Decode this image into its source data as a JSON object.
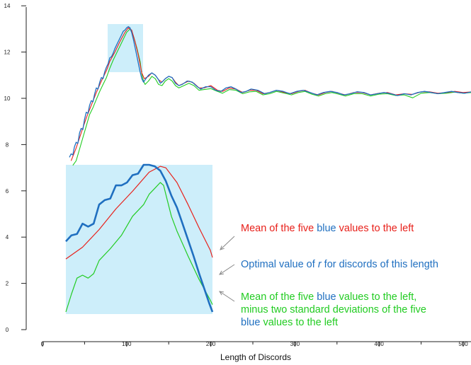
{
  "chart_data": {
    "type": "line",
    "xlabel": "Length of Discords",
    "ylabel": "",
    "xlim": [
      0,
      510
    ],
    "ylim": [
      0,
      14
    ],
    "x_ticks": [
      "0",
      "100",
      "200",
      "300",
      "400",
      "500"
    ],
    "y_ticks": [
      "0",
      "2",
      "4",
      "6",
      "8",
      "10",
      "12",
      "14"
    ],
    "grid": false,
    "colors": {
      "blue": "#1f6fc0",
      "red": "#e8201a",
      "green": "#22cc22",
      "highlight": "#cdeefa"
    },
    "series": [
      {
        "key": "blue",
        "values": [
          [
            32,
            7.45
          ],
          [
            34,
            7.6
          ],
          [
            36,
            7.55
          ],
          [
            38,
            7.9
          ],
          [
            40,
            8.1
          ],
          [
            42,
            8.05
          ],
          [
            44,
            8.5
          ],
          [
            46,
            8.7
          ],
          [
            48,
            8.65
          ],
          [
            50,
            9.1
          ],
          [
            52,
            9.4
          ],
          [
            54,
            9.35
          ],
          [
            56,
            9.7
          ],
          [
            58,
            9.9
          ],
          [
            60,
            9.85
          ],
          [
            62,
            10.2
          ],
          [
            64,
            10.45
          ],
          [
            66,
            10.4
          ],
          [
            68,
            10.7
          ],
          [
            70,
            10.9
          ],
          [
            72,
            10.85
          ],
          [
            74,
            11.15
          ],
          [
            76,
            11.35
          ],
          [
            78,
            11.5
          ],
          [
            80,
            11.75
          ],
          [
            82,
            11.8
          ],
          [
            84,
            11.95
          ],
          [
            86,
            12.15
          ],
          [
            88,
            12.3
          ],
          [
            90,
            12.45
          ],
          [
            92,
            12.6
          ],
          [
            94,
            12.75
          ],
          [
            96,
            12.9
          ],
          [
            98,
            12.95
          ],
          [
            100,
            13.05
          ],
          [
            102,
            13.1
          ],
          [
            104,
            13.05
          ],
          [
            106,
            12.85
          ],
          [
            108,
            12.55
          ],
          [
            110,
            12.2
          ],
          [
            112,
            11.85
          ],
          [
            114,
            11.5
          ],
          [
            116,
            11.15
          ],
          [
            118,
            10.85
          ],
          [
            120,
            10.7
          ],
          [
            122,
            10.8
          ],
          [
            126,
            11.0
          ],
          [
            130,
            11.1
          ],
          [
            134,
            11.0
          ],
          [
            138,
            10.8
          ],
          [
            140,
            10.65
          ],
          [
            142,
            10.7
          ],
          [
            146,
            10.85
          ],
          [
            150,
            10.95
          ],
          [
            154,
            10.9
          ],
          [
            158,
            10.65
          ],
          [
            162,
            10.55
          ],
          [
            166,
            10.6
          ],
          [
            172,
            10.75
          ],
          [
            178,
            10.7
          ],
          [
            184,
            10.5
          ],
          [
            188,
            10.4
          ],
          [
            194,
            10.5
          ],
          [
            200,
            10.5
          ],
          [
            206,
            10.35
          ],
          [
            212,
            10.3
          ],
          [
            218,
            10.45
          ],
          [
            224,
            10.5
          ],
          [
            230,
            10.4
          ],
          [
            236,
            10.25
          ],
          [
            242,
            10.3
          ],
          [
            248,
            10.4
          ],
          [
            256,
            10.35
          ],
          [
            264,
            10.2
          ],
          [
            270,
            10.25
          ],
          [
            278,
            10.35
          ],
          [
            286,
            10.3
          ],
          [
            294,
            10.2
          ],
          [
            302,
            10.3
          ],
          [
            310,
            10.35
          ],
          [
            318,
            10.25
          ],
          [
            326,
            10.15
          ],
          [
            334,
            10.25
          ],
          [
            342,
            10.3
          ],
          [
            350,
            10.25
          ],
          [
            358,
            10.15
          ],
          [
            366,
            10.2
          ],
          [
            374,
            10.28
          ],
          [
            382,
            10.25
          ],
          [
            390,
            10.15
          ],
          [
            398,
            10.2
          ],
          [
            406,
            10.25
          ],
          [
            414,
            10.2
          ],
          [
            422,
            10.12
          ],
          [
            430,
            10.2
          ],
          [
            438,
            10.15
          ],
          [
            446,
            10.25
          ],
          [
            454,
            10.3
          ],
          [
            462,
            10.25
          ],
          [
            470,
            10.2
          ],
          [
            478,
            10.25
          ],
          [
            486,
            10.3
          ],
          [
            494,
            10.25
          ],
          [
            502,
            10.22
          ],
          [
            510,
            10.28
          ]
        ]
      },
      {
        "key": "red",
        "values": [
          [
            34,
            7.3
          ],
          [
            40,
            7.85
          ],
          [
            46,
            8.5
          ],
          [
            52,
            9.15
          ],
          [
            58,
            9.7
          ],
          [
            64,
            10.25
          ],
          [
            70,
            10.75
          ],
          [
            76,
            11.2
          ],
          [
            80,
            11.6
          ],
          [
            86,
            12.0
          ],
          [
            92,
            12.45
          ],
          [
            98,
            12.85
          ],
          [
            102,
            13.05
          ],
          [
            106,
            12.95
          ],
          [
            110,
            12.45
          ],
          [
            114,
            11.85
          ],
          [
            118,
            11.1
          ],
          [
            121,
            10.85
          ],
          [
            126,
            10.95
          ],
          [
            130,
            11.1
          ],
          [
            134,
            11.0
          ],
          [
            138,
            10.8
          ],
          [
            142,
            10.7
          ],
          [
            146,
            10.85
          ],
          [
            150,
            10.95
          ],
          [
            154,
            10.9
          ],
          [
            158,
            10.7
          ],
          [
            162,
            10.55
          ],
          [
            168,
            10.65
          ],
          [
            174,
            10.75
          ],
          [
            180,
            10.65
          ],
          [
            186,
            10.45
          ],
          [
            192,
            10.45
          ],
          [
            200,
            10.55
          ],
          [
            208,
            10.35
          ],
          [
            214,
            10.3
          ],
          [
            222,
            10.45
          ],
          [
            230,
            10.4
          ],
          [
            238,
            10.25
          ],
          [
            246,
            10.35
          ],
          [
            254,
            10.35
          ],
          [
            262,
            10.2
          ],
          [
            270,
            10.25
          ],
          [
            278,
            10.35
          ],
          [
            288,
            10.25
          ],
          [
            296,
            10.2
          ],
          [
            304,
            10.3
          ],
          [
            312,
            10.35
          ],
          [
            320,
            10.22
          ],
          [
            328,
            10.15
          ],
          [
            336,
            10.25
          ],
          [
            344,
            10.3
          ],
          [
            352,
            10.22
          ],
          [
            360,
            10.15
          ],
          [
            370,
            10.25
          ],
          [
            380,
            10.25
          ],
          [
            390,
            10.15
          ],
          [
            400,
            10.22
          ],
          [
            410,
            10.25
          ],
          [
            420,
            10.15
          ],
          [
            430,
            10.2
          ],
          [
            440,
            10.17
          ],
          [
            450,
            10.28
          ],
          [
            460,
            10.28
          ],
          [
            470,
            10.22
          ],
          [
            480,
            10.25
          ],
          [
            490,
            10.3
          ],
          [
            500,
            10.25
          ],
          [
            510,
            10.28
          ]
        ]
      },
      {
        "key": "green",
        "values": [
          [
            36,
            7.1
          ],
          [
            40,
            7.3
          ],
          [
            44,
            7.8
          ],
          [
            48,
            8.3
          ],
          [
            52,
            8.8
          ],
          [
            56,
            9.3
          ],
          [
            60,
            9.6
          ],
          [
            64,
            9.95
          ],
          [
            68,
            10.3
          ],
          [
            72,
            10.6
          ],
          [
            76,
            10.9
          ],
          [
            80,
            11.3
          ],
          [
            84,
            11.65
          ],
          [
            88,
            11.95
          ],
          [
            92,
            12.25
          ],
          [
            96,
            12.55
          ],
          [
            100,
            12.85
          ],
          [
            104,
            13.0
          ],
          [
            108,
            12.7
          ],
          [
            112,
            12.2
          ],
          [
            116,
            11.6
          ],
          [
            118,
            11.05
          ],
          [
            120,
            10.75
          ],
          [
            122,
            10.6
          ],
          [
            126,
            10.75
          ],
          [
            130,
            10.95
          ],
          [
            134,
            10.85
          ],
          [
            138,
            10.6
          ],
          [
            142,
            10.55
          ],
          [
            146,
            10.75
          ],
          [
            150,
            10.85
          ],
          [
            154,
            10.75
          ],
          [
            158,
            10.55
          ],
          [
            162,
            10.45
          ],
          [
            168,
            10.55
          ],
          [
            174,
            10.65
          ],
          [
            180,
            10.55
          ],
          [
            186,
            10.35
          ],
          [
            192,
            10.38
          ],
          [
            200,
            10.42
          ],
          [
            208,
            10.3
          ],
          [
            214,
            10.22
          ],
          [
            222,
            10.38
          ],
          [
            230,
            10.35
          ],
          [
            238,
            10.2
          ],
          [
            246,
            10.28
          ],
          [
            254,
            10.3
          ],
          [
            262,
            10.15
          ],
          [
            270,
            10.2
          ],
          [
            278,
            10.3
          ],
          [
            288,
            10.22
          ],
          [
            296,
            10.15
          ],
          [
            304,
            10.25
          ],
          [
            312,
            10.3
          ],
          [
            320,
            10.18
          ],
          [
            328,
            10.1
          ],
          [
            336,
            10.2
          ],
          [
            344,
            10.25
          ],
          [
            352,
            10.18
          ],
          [
            360,
            10.1
          ],
          [
            370,
            10.2
          ],
          [
            380,
            10.2
          ],
          [
            390,
            10.1
          ],
          [
            400,
            10.18
          ],
          [
            410,
            10.2
          ],
          [
            420,
            10.12
          ],
          [
            430,
            10.15
          ],
          [
            440,
            10.02
          ],
          [
            450,
            10.22
          ],
          [
            460,
            10.25
          ],
          [
            470,
            10.2
          ],
          [
            480,
            10.22
          ],
          [
            490,
            10.27
          ],
          [
            500,
            10.22
          ],
          [
            510,
            10.25
          ]
        ]
      }
    ],
    "inset": {
      "blue": [
        [
          0,
          0.48
        ],
        [
          5,
          0.52
        ],
        [
          10,
          0.53
        ],
        [
          15,
          0.6
        ],
        [
          20,
          0.58
        ],
        [
          25,
          0.6
        ],
        [
          30,
          0.73
        ],
        [
          35,
          0.76
        ],
        [
          40,
          0.77
        ],
        [
          45,
          0.86
        ],
        [
          50,
          0.86
        ],
        [
          55,
          0.88
        ],
        [
          60,
          0.93
        ],
        [
          65,
          0.94
        ],
        [
          70,
          1.0
        ],
        [
          75,
          1.0
        ],
        [
          80,
          0.99
        ],
        [
          85,
          0.96
        ],
        [
          90,
          0.89
        ],
        [
          95,
          0.79
        ],
        [
          100,
          0.71
        ],
        [
          105,
          0.6
        ],
        [
          110,
          0.49
        ],
        [
          115,
          0.38
        ],
        [
          120,
          0.26
        ],
        [
          125,
          0.15
        ],
        [
          129,
          0.06
        ],
        [
          132,
          0.0
        ]
      ],
      "red": [
        [
          0,
          0.36
        ],
        [
          15,
          0.44
        ],
        [
          30,
          0.56
        ],
        [
          45,
          0.7
        ],
        [
          60,
          0.82
        ],
        [
          75,
          0.95
        ],
        [
          85,
          0.99
        ],
        [
          90,
          0.98
        ],
        [
          100,
          0.88
        ],
        [
          110,
          0.73
        ],
        [
          120,
          0.57
        ],
        [
          130,
          0.42
        ],
        [
          132,
          0.37
        ]
      ],
      "green": [
        [
          0,
          0.0
        ],
        [
          5,
          0.12
        ],
        [
          10,
          0.23
        ],
        [
          15,
          0.25
        ],
        [
          20,
          0.23
        ],
        [
          25,
          0.26
        ],
        [
          30,
          0.35
        ],
        [
          40,
          0.43
        ],
        [
          50,
          0.52
        ],
        [
          60,
          0.65
        ],
        [
          70,
          0.73
        ],
        [
          75,
          0.8
        ],
        [
          80,
          0.84
        ],
        [
          85,
          0.88
        ],
        [
          88,
          0.86
        ],
        [
          90,
          0.8
        ],
        [
          95,
          0.65
        ],
        [
          100,
          0.55
        ],
        [
          110,
          0.38
        ],
        [
          120,
          0.22
        ],
        [
          125,
          0.15
        ],
        [
          130,
          0.08
        ],
        [
          132,
          0.05
        ]
      ]
    }
  },
  "annotations": {
    "red_line": {
      "text": "Mean of the five blue values to the left",
      "colored_word": "blue"
    },
    "blue_line": {
      "pre": "Optimal value of ",
      "italic": "r",
      "post": " for discords of this length"
    },
    "green_line1": "Mean of the five blue values to the left,",
    "green_line2": "minus two standard deviations of the five",
    "green_line3": "blue values to the left",
    "colored_word": "blue"
  }
}
